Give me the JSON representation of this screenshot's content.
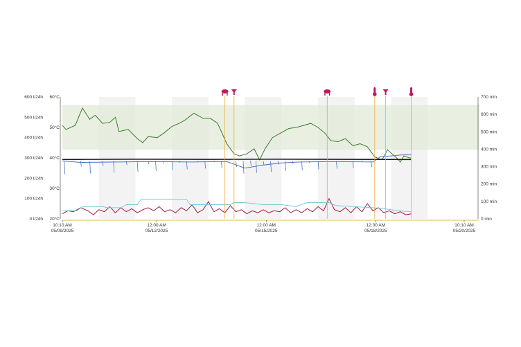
{
  "chart_data": {
    "type": "line",
    "title": "",
    "x_ticks": [
      {
        "time": "10:10 AM",
        "date": "05/09/2025"
      },
      {
        "time": "12:00 AM",
        "date": "05/12/2025"
      },
      {
        "time": "12:00 AM",
        "date": "05/15/2025"
      },
      {
        "time": "12:00 AM",
        "date": "05/18/2025"
      },
      {
        "time": "10:10 AM",
        "date": "05/20/2025"
      }
    ],
    "x_range_days": [
      0,
      11
    ],
    "y_axes": {
      "flow": {
        "labels": [
          "0 l/24h",
          "100 l/24h",
          "200 l/24h",
          "300 l/24h",
          "400 l/24h",
          "500 l/24h",
          "600 l/24h"
        ],
        "min": 0,
        "max": 600
      },
      "temperature": {
        "labels": [
          "20°C",
          "30°C",
          "40°C",
          "50°C",
          "60°C"
        ],
        "min": 20,
        "max": 60
      },
      "minutes": {
        "labels": [
          "0 min",
          "100 min",
          "200 min",
          "300 min",
          "400 min",
          "500 min",
          "600 min",
          "700 min"
        ],
        "min": 0,
        "max": 700
      }
    },
    "target_band_flow": [
      340,
      560
    ],
    "event_markers": [
      {
        "day": 4.45,
        "icon": "cow-icon"
      },
      {
        "day": 4.7,
        "icon": "hoof-icon"
      },
      {
        "day": 7.25,
        "icon": "cow-icon"
      },
      {
        "day": 8.55,
        "icon": "thermometer-icon"
      },
      {
        "day": 8.85,
        "icon": "hoof-icon"
      },
      {
        "day": 9.55,
        "icon": "thermometer-icon"
      }
    ],
    "series": [
      {
        "key": "green",
        "color": "#3a7a2e",
        "values": [
          [
            0,
            460
          ],
          [
            0.1,
            440
          ],
          [
            0.35,
            460
          ],
          [
            0.55,
            545
          ],
          [
            0.75,
            490
          ],
          [
            0.9,
            510
          ],
          [
            1.1,
            470
          ],
          [
            1.3,
            475
          ],
          [
            1.45,
            500
          ],
          [
            1.55,
            430
          ],
          [
            1.8,
            440
          ],
          [
            2.05,
            395
          ],
          [
            2.2,
            375
          ],
          [
            2.35,
            405
          ],
          [
            2.6,
            400
          ],
          [
            2.8,
            425
          ],
          [
            3.0,
            455
          ],
          [
            3.2,
            470
          ],
          [
            3.35,
            485
          ],
          [
            3.6,
            520
          ],
          [
            3.85,
            495
          ],
          [
            4.05,
            495
          ],
          [
            4.25,
            470
          ],
          [
            4.5,
            370
          ],
          [
            4.7,
            320
          ],
          [
            4.85,
            310
          ],
          [
            5.05,
            320
          ],
          [
            5.25,
            345
          ],
          [
            5.4,
            290
          ],
          [
            5.55,
            345
          ],
          [
            5.75,
            400
          ],
          [
            6.0,
            425
          ],
          [
            6.2,
            445
          ],
          [
            6.4,
            450
          ],
          [
            6.6,
            460
          ],
          [
            6.8,
            470
          ],
          [
            7.0,
            450
          ],
          [
            7.2,
            420
          ],
          [
            7.35,
            385
          ],
          [
            7.55,
            380
          ],
          [
            7.75,
            395
          ],
          [
            7.95,
            360
          ],
          [
            8.15,
            370
          ],
          [
            8.35,
            355
          ],
          [
            8.55,
            305
          ],
          [
            8.75,
            290
          ],
          [
            8.9,
            340
          ],
          [
            9.15,
            300
          ],
          [
            9.25,
            280
          ],
          [
            9.35,
            310
          ],
          [
            9.5,
            300
          ],
          [
            9.55,
            300
          ]
        ]
      },
      {
        "key": "blue",
        "color": "#4a72c4",
        "values": [
          [
            0,
            285
          ],
          [
            0.5,
            278
          ],
          [
            1.5,
            280
          ],
          [
            2.5,
            282
          ],
          [
            3.5,
            280
          ],
          [
            4.5,
            282
          ],
          [
            5,
            250
          ],
          [
            5.5,
            265
          ],
          [
            6,
            275
          ],
          [
            6.5,
            280
          ],
          [
            7.5,
            282
          ],
          [
            8.5,
            280
          ],
          [
            8.7,
            305
          ],
          [
            9.0,
            310
          ],
          [
            9.3,
            315
          ],
          [
            9.55,
            315
          ]
        ]
      },
      {
        "key": "black",
        "color": "#1a1a1a",
        "values": [
          [
            0,
            292
          ],
          [
            2,
            294
          ],
          [
            4,
            293
          ],
          [
            6,
            294
          ],
          [
            8,
            293
          ],
          [
            9.55,
            292
          ]
        ]
      },
      {
        "key": "red",
        "color": "#a0174a",
        "values": [
          [
            0,
            25
          ],
          [
            0.15,
            40
          ],
          [
            0.3,
            35
          ],
          [
            0.5,
            55
          ],
          [
            0.7,
            40
          ],
          [
            0.85,
            20
          ],
          [
            1.0,
            45
          ],
          [
            1.15,
            35
          ],
          [
            1.3,
            60
          ],
          [
            1.45,
            30
          ],
          [
            1.6,
            55
          ],
          [
            1.75,
            35
          ],
          [
            1.9,
            50
          ],
          [
            2.05,
            30
          ],
          [
            2.2,
            45
          ],
          [
            2.35,
            55
          ],
          [
            2.5,
            40
          ],
          [
            2.65,
            60
          ],
          [
            2.8,
            35
          ],
          [
            2.95,
            45
          ],
          [
            3.1,
            30
          ],
          [
            3.25,
            55
          ],
          [
            3.4,
            40
          ],
          [
            3.55,
            70
          ],
          [
            3.7,
            30
          ],
          [
            3.85,
            45
          ],
          [
            4.0,
            85
          ],
          [
            4.15,
            35
          ],
          [
            4.3,
            50
          ],
          [
            4.45,
            30
          ],
          [
            4.6,
            65
          ],
          [
            4.75,
            35
          ],
          [
            4.9,
            45
          ],
          [
            5.05,
            25
          ],
          [
            5.2,
            40
          ],
          [
            5.35,
            30
          ],
          [
            5.5,
            45
          ],
          [
            5.65,
            30
          ],
          [
            5.8,
            40
          ],
          [
            5.95,
            35
          ],
          [
            6.1,
            55
          ],
          [
            6.25,
            30
          ],
          [
            6.4,
            45
          ],
          [
            6.55,
            30
          ],
          [
            6.7,
            50
          ],
          [
            6.85,
            35
          ],
          [
            7.0,
            60
          ],
          [
            7.15,
            40
          ],
          [
            7.3,
            100
          ],
          [
            7.45,
            45
          ],
          [
            7.6,
            35
          ],
          [
            7.75,
            55
          ],
          [
            7.9,
            30
          ],
          [
            8.05,
            60
          ],
          [
            8.2,
            35
          ],
          [
            8.35,
            75
          ],
          [
            8.5,
            40
          ],
          [
            8.65,
            55
          ],
          [
            8.8,
            30
          ],
          [
            8.95,
            40
          ],
          [
            9.1,
            25
          ],
          [
            9.25,
            35
          ],
          [
            9.4,
            20
          ],
          [
            9.55,
            25
          ]
        ]
      },
      {
        "key": "lightblue",
        "color": "#7fc7d9",
        "values": [
          [
            0,
            40
          ],
          [
            0.4,
            40
          ],
          [
            0.55,
            60
          ],
          [
            1.1,
            60
          ],
          [
            1.25,
            55
          ],
          [
            1.6,
            55
          ],
          [
            1.75,
            70
          ],
          [
            2.05,
            70
          ],
          [
            2.15,
            95
          ],
          [
            2.5,
            95
          ],
          [
            3.4,
            95
          ],
          [
            3.5,
            70
          ],
          [
            4.4,
            70
          ],
          [
            4.6,
            70
          ],
          [
            4.7,
            80
          ],
          [
            5.0,
            80
          ],
          [
            5.5,
            70
          ],
          [
            6.0,
            70
          ],
          [
            6.4,
            60
          ],
          [
            6.7,
            80
          ],
          [
            7.3,
            80
          ],
          [
            7.5,
            65
          ],
          [
            8.0,
            60
          ],
          [
            8.5,
            55
          ],
          [
            8.8,
            50
          ],
          [
            9.2,
            40
          ],
          [
            9.55,
            35
          ]
        ]
      }
    ]
  }
}
